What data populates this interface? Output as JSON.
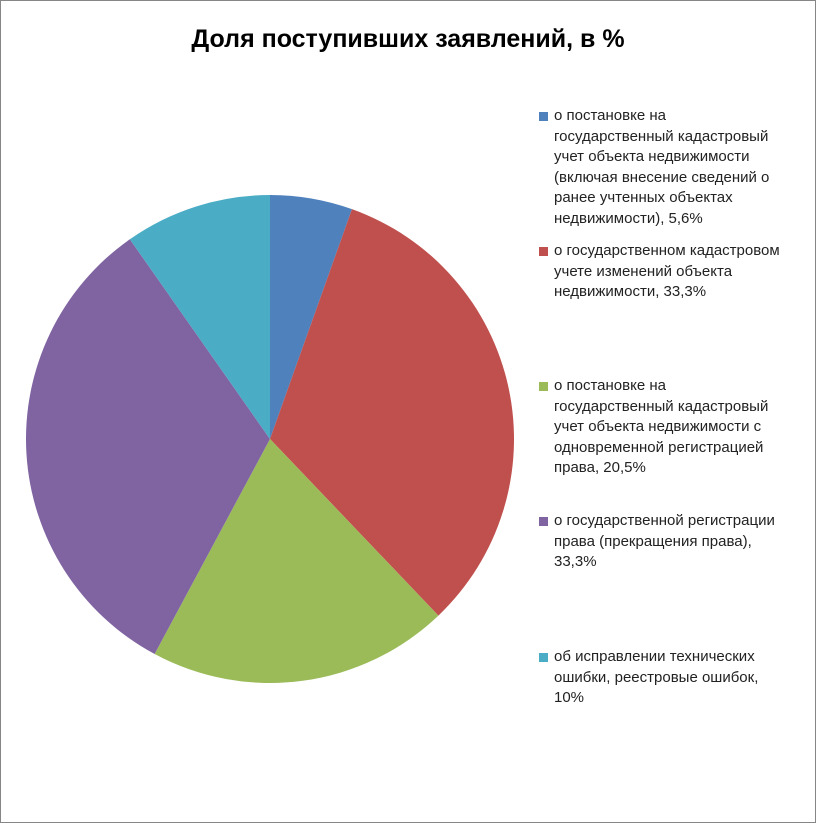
{
  "chart_data": {
    "type": "pie",
    "title": "Доля поступивших заявлений, в %",
    "legend_position": "right",
    "start_angle": "top, clockwise",
    "slices": [
      {
        "label": "о постановке на государственный кадастровый учет объекта недвижимости (включая внесение сведений о ранее учтенных объектах недвижимости), 5,6%",
        "lines": [
          "о постановке на",
          "государственный кадастровый",
          "учет объекта недвижимости",
          "(включая внесение сведений о",
          "ранее учтенных объектах",
          "недвижимости), 5,6%"
        ],
        "value": 5.6,
        "color": "#4f81bd"
      },
      {
        "label": "о государственном кадастровом учете изменений объекта недвижимости, 33,3%",
        "lines": [
          "о государственном кадастровом",
          "учете изменений объекта",
          "недвижимости, 33,3%"
        ],
        "value": 33.3,
        "color": "#c0504d"
      },
      {
        "label": "о постановке на государственный кадастровый учет объекта недвижимости  с одновременной регистрацией права, 20,5%",
        "lines": [
          "о постановке на",
          "государственный кадастровый",
          "учет объекта недвижимости  с",
          "одновременной регистрацией",
          "права, 20,5%"
        ],
        "value": 20.5,
        "color": "#9bbb59"
      },
      {
        "label": "о государственной регистрации права (прекращения права), 33,3%",
        "lines": [
          "о государственной регистрации",
          "права (прекращения права),",
          "33,3%"
        ],
        "value": 33.3,
        "color": "#8064a2"
      },
      {
        "label": "об исправлении технических ошибки, реестровые ошибок, 10%",
        "lines": [
          "об исправлении технических",
          "ошибки, реестровые ошибок,",
          "10%"
        ],
        "value": 10,
        "color": "#4bacc6"
      }
    ]
  }
}
